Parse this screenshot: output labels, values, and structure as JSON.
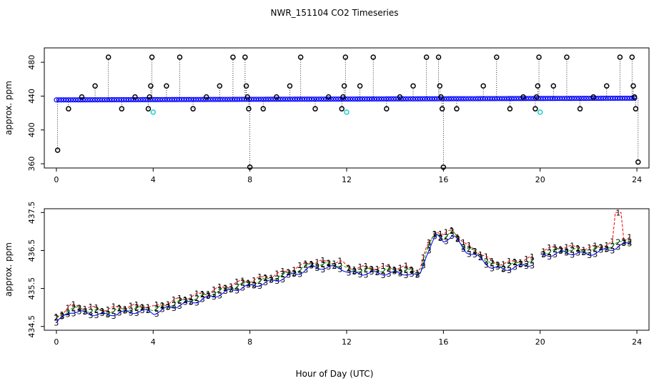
{
  "chart_data": [
    {
      "type": "scatter",
      "title": "NWR_151104  CO2 Timeseries",
      "xlabel": "",
      "ylabel": "approx. ppm",
      "xlim": [
        -0.5,
        24.5
      ],
      "ylim": [
        355,
        497
      ],
      "xticks": [
        "0",
        "4",
        "8",
        "12",
        "16",
        "20",
        "24"
      ],
      "yticks": [
        "360",
        "400",
        "440",
        "480"
      ],
      "baseline_series": {
        "name": "CO2 (dense)",
        "color": "#0000ff",
        "x_start": 0,
        "x_end": 23.9,
        "y_start": 435.5,
        "y_end": 437.5
      },
      "spikes": [
        {
          "x": 0.05,
          "y": 376
        },
        {
          "x": 0.5,
          "y": 425
        },
        {
          "x": 1.05,
          "y": 439
        },
        {
          "x": 1.6,
          "y": 452
        },
        {
          "x": 2.15,
          "y": 486
        },
        {
          "x": 2.7,
          "y": 425
        },
        {
          "x": 3.25,
          "y": 439
        },
        {
          "x": 3.8,
          "y": 425
        },
        {
          "x": 3.85,
          "y": 439
        },
        {
          "x": 3.9,
          "y": 452
        },
        {
          "x": 3.95,
          "y": 486
        },
        {
          "x": 4.55,
          "y": 452
        },
        {
          "x": 5.1,
          "y": 486
        },
        {
          "x": 5.65,
          "y": 425
        },
        {
          "x": 6.2,
          "y": 439
        },
        {
          "x": 6.75,
          "y": 452
        },
        {
          "x": 7.3,
          "y": 486
        },
        {
          "x": 7.8,
          "y": 486
        },
        {
          "x": 7.85,
          "y": 452
        },
        {
          "x": 7.9,
          "y": 439
        },
        {
          "x": 7.95,
          "y": 425
        },
        {
          "x": 8.0,
          "y": 356
        },
        {
          "x": 8.55,
          "y": 425
        },
        {
          "x": 9.1,
          "y": 439
        },
        {
          "x": 9.65,
          "y": 452
        },
        {
          "x": 10.1,
          "y": 486
        },
        {
          "x": 10.7,
          "y": 425
        },
        {
          "x": 11.25,
          "y": 439
        },
        {
          "x": 11.8,
          "y": 425
        },
        {
          "x": 11.85,
          "y": 439
        },
        {
          "x": 11.9,
          "y": 452
        },
        {
          "x": 11.95,
          "y": 486
        },
        {
          "x": 12.55,
          "y": 452
        },
        {
          "x": 13.1,
          "y": 486
        },
        {
          "x": 13.65,
          "y": 425
        },
        {
          "x": 14.2,
          "y": 439
        },
        {
          "x": 14.75,
          "y": 452
        },
        {
          "x": 15.3,
          "y": 486
        },
        {
          "x": 15.8,
          "y": 486
        },
        {
          "x": 15.85,
          "y": 452
        },
        {
          "x": 15.9,
          "y": 439
        },
        {
          "x": 15.95,
          "y": 425
        },
        {
          "x": 16.0,
          "y": 356
        },
        {
          "x": 16.55,
          "y": 425
        },
        {
          "x": 17.65,
          "y": 452
        },
        {
          "x": 18.2,
          "y": 486
        },
        {
          "x": 18.75,
          "y": 425
        },
        {
          "x": 19.3,
          "y": 439
        },
        {
          "x": 19.8,
          "y": 425
        },
        {
          "x": 19.85,
          "y": 439
        },
        {
          "x": 19.9,
          "y": 452
        },
        {
          "x": 19.95,
          "y": 486
        },
        {
          "x": 20.55,
          "y": 452
        },
        {
          "x": 21.1,
          "y": 486
        },
        {
          "x": 21.65,
          "y": 425
        },
        {
          "x": 22.2,
          "y": 439
        },
        {
          "x": 22.75,
          "y": 452
        },
        {
          "x": 23.3,
          "y": 486
        },
        {
          "x": 23.8,
          "y": 486
        },
        {
          "x": 23.85,
          "y": 452
        },
        {
          "x": 23.9,
          "y": 439
        },
        {
          "x": 23.95,
          "y": 425
        },
        {
          "x": 24.05,
          "y": 362
        }
      ],
      "cyan_points": [
        {
          "x": 4.0,
          "y": 421
        },
        {
          "x": 12.0,
          "y": 421
        },
        {
          "x": 20.0,
          "y": 421
        }
      ]
    },
    {
      "type": "scatter",
      "title": "",
      "xlabel": "Hour of Day (UTC)",
      "ylabel": "approx. ppm",
      "xlim": [
        -0.5,
        24.5
      ],
      "ylim": [
        434.4,
        437.6
      ],
      "xticks": [
        "0",
        "4",
        "8",
        "12",
        "16",
        "20",
        "24"
      ],
      "yticks": [
        "434.5",
        "435.5",
        "436.5",
        "437.5"
      ],
      "legend": "",
      "series": [
        {
          "name": "3",
          "color": "#0000ff",
          "marker": "3",
          "offset": 0.0
        },
        {
          "name": "2",
          "color": "#00b000",
          "marker": "2",
          "offset": 0.08
        },
        {
          "name": "1",
          "color": "#ff0000",
          "marker": "1",
          "offset": 0.15
        }
      ],
      "trend_knots": [
        {
          "x": 0.0,
          "y": 434.6
        },
        {
          "x": 0.6,
          "y": 434.9
        },
        {
          "x": 1.2,
          "y": 434.85
        },
        {
          "x": 2.0,
          "y": 434.8
        },
        {
          "x": 3.0,
          "y": 434.88
        },
        {
          "x": 3.8,
          "y": 434.9
        },
        {
          "x": 4.0,
          "y": 434.85
        },
        {
          "x": 5.0,
          "y": 435.05
        },
        {
          "x": 6.0,
          "y": 435.2
        },
        {
          "x": 7.0,
          "y": 435.4
        },
        {
          "x": 7.8,
          "y": 435.55
        },
        {
          "x": 8.0,
          "y": 435.55
        },
        {
          "x": 9.0,
          "y": 435.7
        },
        {
          "x": 10.0,
          "y": 435.9
        },
        {
          "x": 10.5,
          "y": 436.05
        },
        {
          "x": 11.8,
          "y": 436.05
        },
        {
          "x": 12.0,
          "y": 435.9
        },
        {
          "x": 13.0,
          "y": 435.9
        },
        {
          "x": 14.5,
          "y": 435.9
        },
        {
          "x": 15.0,
          "y": 435.8
        },
        {
          "x": 15.3,
          "y": 436.4
        },
        {
          "x": 15.7,
          "y": 436.9
        },
        {
          "x": 16.0,
          "y": 436.75
        },
        {
          "x": 16.4,
          "y": 436.9
        },
        {
          "x": 16.9,
          "y": 436.5
        },
        {
          "x": 17.5,
          "y": 436.3
        },
        {
          "x": 18.0,
          "y": 436.05
        },
        {
          "x": 18.5,
          "y": 436.0
        },
        {
          "x": 19.7,
          "y": 436.15
        },
        {
          "x": 20.0,
          "y": 436.35
        },
        {
          "x": 21.0,
          "y": 436.45
        },
        {
          "x": 22.0,
          "y": 436.4
        },
        {
          "x": 23.0,
          "y": 436.55
        },
        {
          "x": 23.7,
          "y": 436.7
        }
      ],
      "gaps": [
        [
          3.85,
          4.0
        ],
        [
          11.85,
          12.0
        ],
        [
          19.75,
          20.0
        ]
      ],
      "red_peak": {
        "x": 23.25,
        "y": 437.5
      }
    }
  ]
}
